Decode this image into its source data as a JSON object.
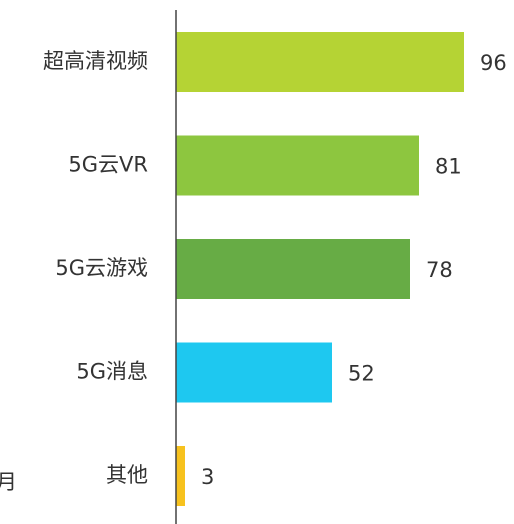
{
  "chart_data": {
    "type": "barh",
    "categories": [
      "超高清视频",
      "5G云VR",
      "5G云游戏",
      "5G消息",
      "其他"
    ],
    "values": [
      96,
      81,
      78,
      52,
      3
    ],
    "colors": [
      "#b5d334",
      "#8dc63f",
      "#67ac45",
      "#1ec8f0",
      "#f7c21e"
    ],
    "xlim": [
      0,
      100
    ],
    "annotation": "月"
  }
}
